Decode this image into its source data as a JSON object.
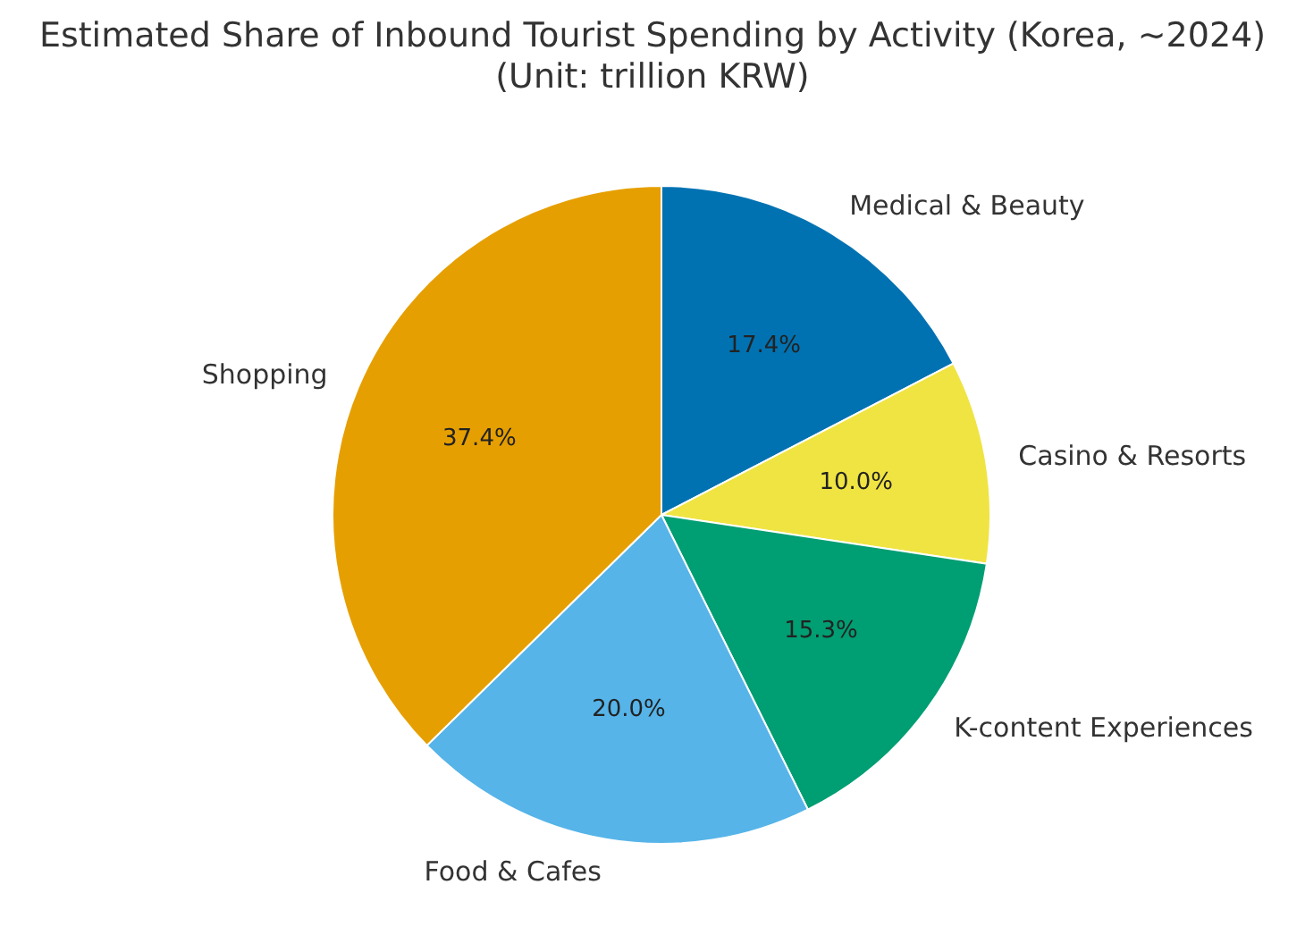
{
  "chart_data": {
    "type": "pie",
    "title": "Estimated Share of Inbound Tourist Spending by Activity (Korea, ~2024)\n(Unit: trillion KRW)",
    "categories": [
      "Medical & Beauty",
      "Casino & Resorts",
      "K-content Experiences",
      "Food & Cafes",
      "Shopping"
    ],
    "values": [
      17.4,
      10.0,
      15.3,
      20.0,
      37.4
    ],
    "colors": [
      "#0072b2",
      "#f0e442",
      "#009e73",
      "#56b4e9",
      "#e69f00"
    ],
    "value_labels": [
      "17.4%",
      "10.0%",
      "15.3%",
      "20.0%",
      "37.4%"
    ],
    "legend": false
  }
}
